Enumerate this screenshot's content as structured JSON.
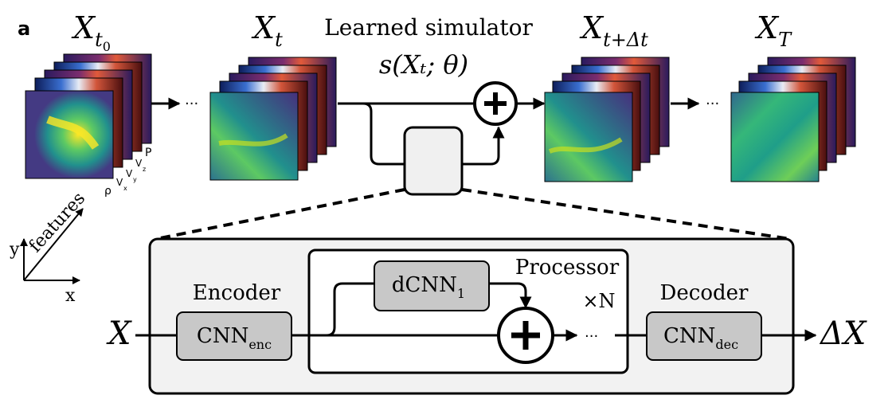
{
  "panel_label": "a",
  "top": {
    "states": [
      {
        "base": "X",
        "sub": "t",
        "subsub": "0"
      },
      {
        "base": "X",
        "sub": "t"
      },
      {
        "base": "X",
        "sub": "t+Δt"
      },
      {
        "base": "X",
        "sub": "T"
      }
    ],
    "ellipsis": "···",
    "simulator_title": "Learned simulator",
    "simulator_formula": "s(Xₜ; θ)",
    "feature_labels": [
      "ρ",
      "V",
      "x",
      "V",
      "y",
      "V",
      "z",
      "P"
    ]
  },
  "axes": {
    "y": "y",
    "features": "features",
    "x": "x"
  },
  "network": {
    "input": "X",
    "output": "ΔX",
    "encoder_title": "Encoder",
    "encoder_block": "CNN",
    "encoder_sub": "enc",
    "processor_title": "Processor",
    "processor_block": "dCNN",
    "processor_sub": "1",
    "repeat": "×N",
    "ellipsis": "···",
    "decoder_title": "Decoder",
    "decoder_block": "CNN",
    "decoder_sub": "dec"
  },
  "colors": {
    "box_fill": "#f2f2f2",
    "block_fill": "#c8c8c8",
    "small_box_fill": "#f0f0f0",
    "line": "#000000",
    "viridis": [
      "#440154",
      "#3b528b",
      "#21908d",
      "#5dc963",
      "#fde725"
    ]
  }
}
